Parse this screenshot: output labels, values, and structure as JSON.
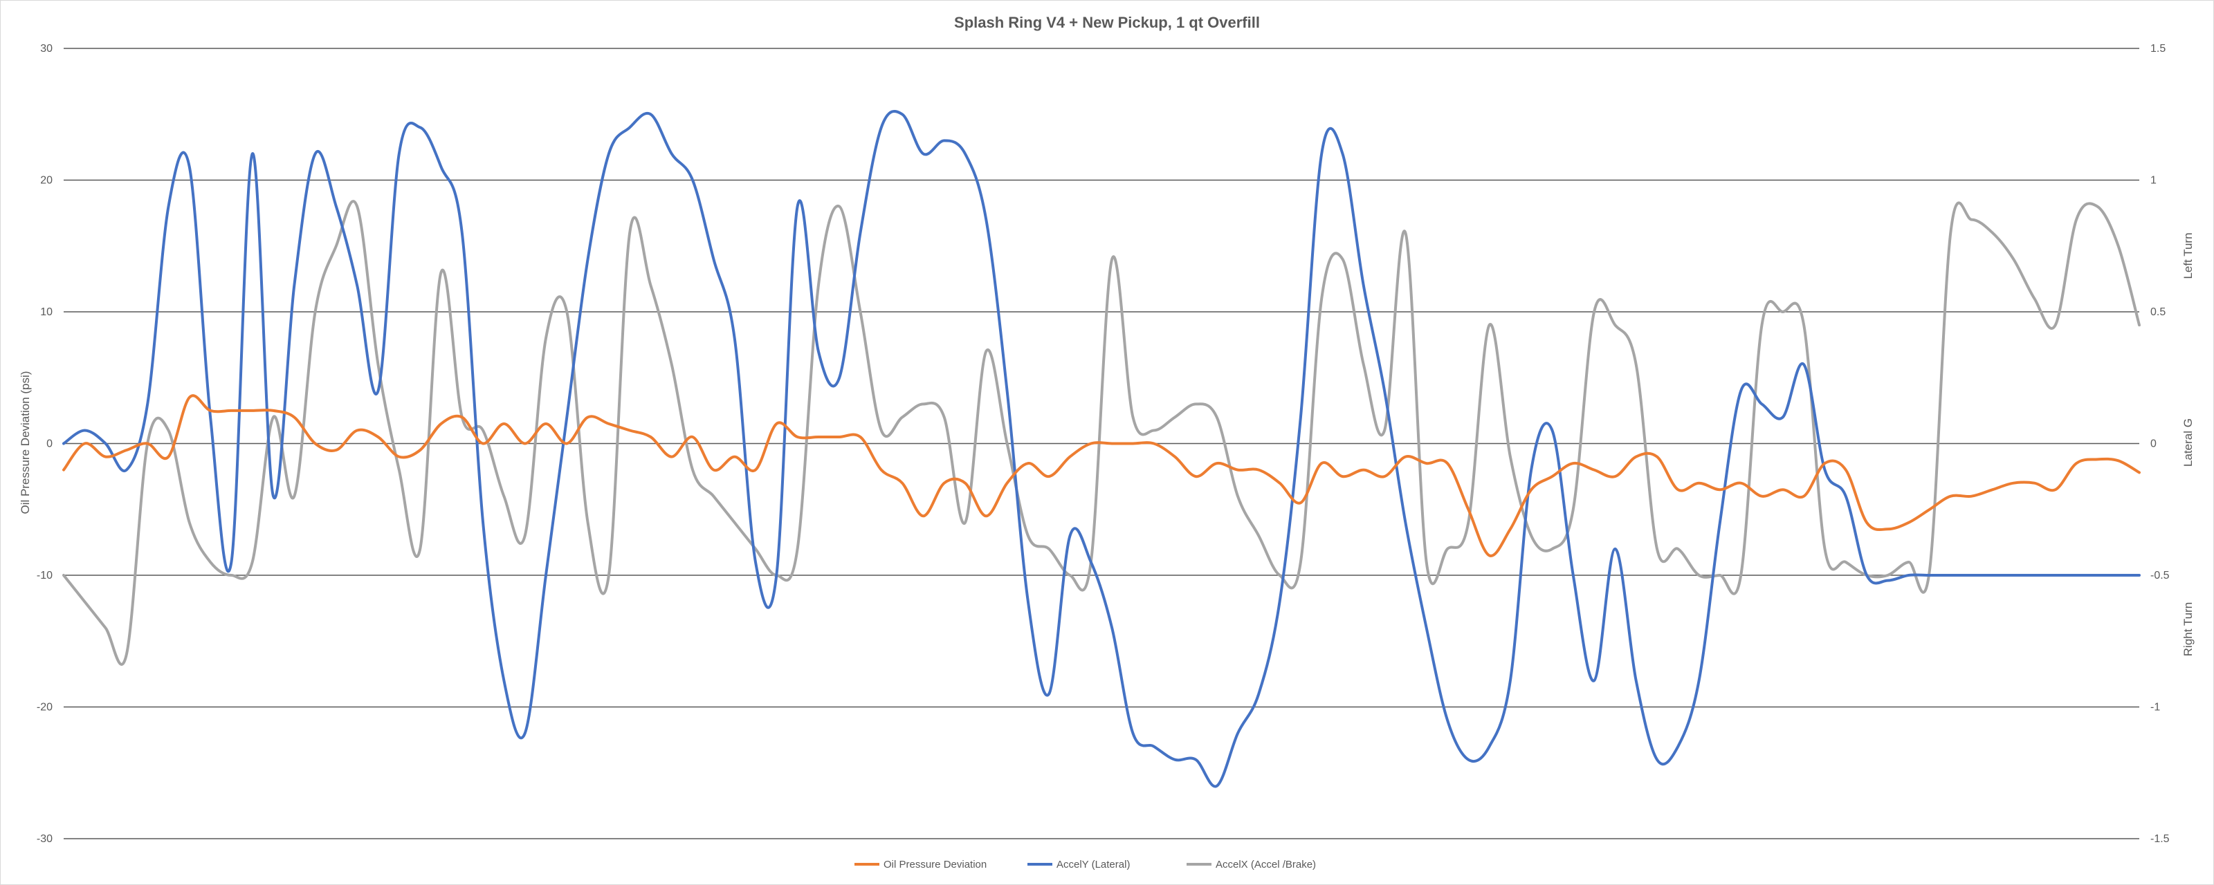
{
  "chart_data": {
    "type": "line",
    "title": "Splash Ring V4 + New Pickup, 1 qt Overfill",
    "ylabel": "Oil Pressure Deviation (psi)",
    "y2label": "Lateral G",
    "y2_annotations": {
      "upper": "Left Turn",
      "lower": "Right Turn"
    },
    "ylim": [
      -30,
      30
    ],
    "y2lim": [
      -1.5,
      1.5
    ],
    "y_ticks": [
      "30",
      "20",
      "10",
      "0",
      "-10",
      "-20",
      "-30"
    ],
    "y2_ticks": [
      "1.5",
      "1",
      "0.5",
      "0",
      "-0.5",
      "-1",
      "-1.5"
    ],
    "grid": true,
    "legend_position": "bottom",
    "x_count": 100,
    "series": [
      {
        "name": "Oil Pressure Deviation",
        "axis": "left",
        "color": "#ED7D31",
        "values": [
          -2,
          0,
          -1,
          -0.5,
          0,
          -1,
          3.5,
          2.5,
          2.5,
          2.5,
          2.5,
          2,
          0,
          -0.5,
          1,
          0.5,
          -1,
          -0.5,
          1.5,
          2,
          0,
          1.5,
          0,
          1.5,
          0,
          2,
          1.5,
          1,
          0.5,
          -1,
          0.5,
          -2,
          -1,
          -2,
          1.5,
          0.5,
          0.5,
          0.5,
          0.5,
          -2,
          -3,
          -5.5,
          -3,
          -3,
          -5.5,
          -3,
          -1.5,
          -2.5,
          -1,
          0,
          0,
          0,
          0,
          -1,
          -2.5,
          -1.5,
          -2,
          -2,
          -3,
          -4.5,
          -1.5,
          -2.5,
          -2,
          -2.5,
          -1,
          -1.5,
          -1.5,
          -5,
          -8.5,
          -6.5,
          -3.5,
          -2.5,
          -1.5,
          -2,
          -2.5,
          -1,
          -1,
          -3.5,
          -3,
          -3.5,
          -3,
          -4,
          -3.5,
          -4,
          -1.5,
          -2,
          -6,
          -6.5,
          -6,
          -5,
          -4,
          -4,
          -3.5,
          -3,
          -3,
          -3.5,
          -1.5,
          -1.2,
          -1.3,
          -2.2
        ]
      },
      {
        "name": "AccelY (Lateral)",
        "axis": "right",
        "color": "#4472C4",
        "values": [
          0,
          0.05,
          0,
          -0.1,
          0.15,
          0.9,
          1.05,
          0.1,
          -0.45,
          1.1,
          -0.2,
          0.6,
          1.1,
          0.9,
          0.6,
          0.2,
          1.1,
          1.2,
          1.05,
          0.8,
          -0.3,
          -0.9,
          -1.1,
          -0.5,
          0.1,
          0.7,
          1.1,
          1.2,
          1.25,
          1.1,
          1,
          0.7,
          0.4,
          -0.45,
          -0.5,
          0.9,
          0.35,
          0.25,
          0.8,
          1.2,
          1.25,
          1.1,
          1.15,
          1.1,
          0.85,
          0.2,
          -0.6,
          -0.95,
          -0.35,
          -0.45,
          -0.7,
          -1.1,
          -1.15,
          -1.2,
          -1.2,
          -1.3,
          -1.1,
          -0.95,
          -0.6,
          0.1,
          1.1,
          1.1,
          0.6,
          0.2,
          -0.3,
          -0.7,
          -1.05,
          -1.2,
          -1.15,
          -0.9,
          -0.1,
          0.05,
          -0.5,
          -0.9,
          -0.4,
          -0.9,
          -1.2,
          -1.15,
          -0.9,
          -0.3,
          0.2,
          0.15,
          0.1,
          0.3,
          -0.1,
          -0.2,
          -0.5,
          -0.52,
          -0.5,
          -0.5,
          -0.5,
          -0.5,
          -0.5,
          -0.5,
          -0.5,
          -0.5,
          -0.5,
          -0.5,
          -0.5,
          -0.5
        ]
      },
      {
        "name": "AccelX (Accel /Brake)",
        "axis": "right",
        "color": "#A5A5A5",
        "values": [
          -0.5,
          -0.6,
          -0.7,
          -0.8,
          0,
          0.05,
          -0.3,
          -0.45,
          -0.5,
          -0.45,
          0.1,
          -0.2,
          0.5,
          0.75,
          0.9,
          0.3,
          -0.1,
          -0.4,
          0.65,
          0.1,
          0.05,
          -0.2,
          -0.35,
          0.4,
          0.5,
          -0.3,
          -0.5,
          0.8,
          0.6,
          0.3,
          -0.1,
          -0.2,
          -0.3,
          -0.4,
          -0.5,
          -0.4,
          0.6,
          0.9,
          0.5,
          0.05,
          0.1,
          0.15,
          0.1,
          -0.3,
          0.35,
          0,
          -0.35,
          -0.4,
          -0.5,
          -0.45,
          0.7,
          0.1,
          0.05,
          0.1,
          0.15,
          0.1,
          -0.2,
          -0.35,
          -0.5,
          -0.45,
          0.55,
          0.7,
          0.3,
          0.05,
          0.8,
          -0.45,
          -0.4,
          -0.3,
          0.45,
          -0.05,
          -0.35,
          -0.4,
          -0.25,
          0.5,
          0.45,
          0.3,
          -0.4,
          -0.4,
          -0.5,
          -0.5,
          -0.5,
          0.45,
          0.5,
          0.45,
          -0.4,
          -0.45,
          -0.5,
          -0.5,
          -0.45,
          -0.48,
          0.8,
          0.85,
          0.8,
          0.7,
          0.55,
          0.45,
          0.85,
          0.9,
          0.75,
          0.45
        ]
      }
    ]
  }
}
